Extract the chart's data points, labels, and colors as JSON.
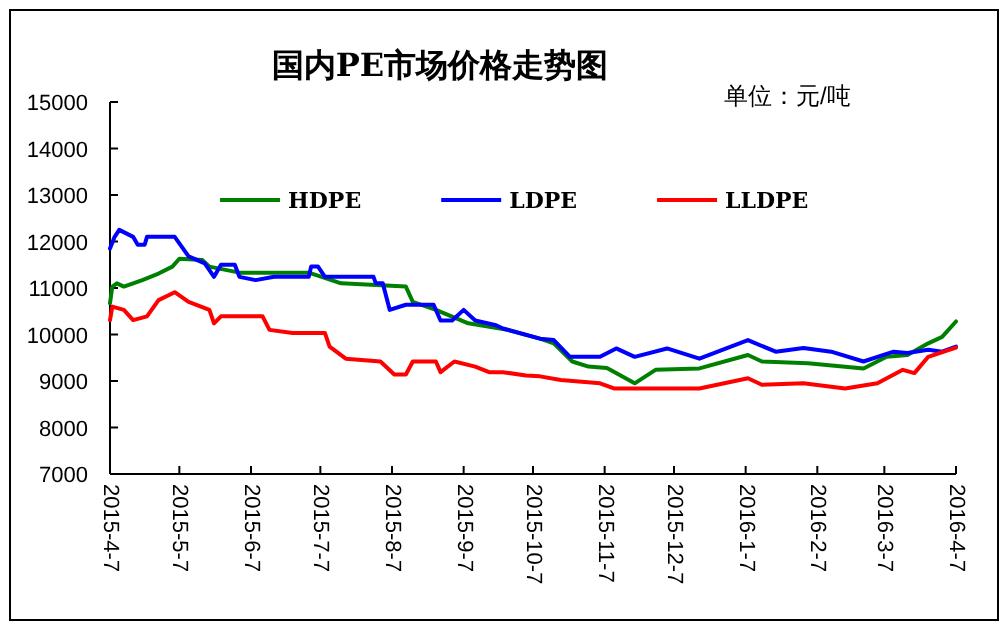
{
  "chart_data": {
    "type": "line",
    "title": "国内PE市场价格走势图",
    "annotations": [
      "单位：元/吨"
    ],
    "ylim": [
      7000,
      15000
    ],
    "yticks": [
      7000,
      8000,
      9000,
      10000,
      11000,
      12000,
      13000,
      14000,
      15000
    ],
    "xlim": [
      "2015-04-07",
      "2016-04-07"
    ],
    "xticks": [
      {
        "value": "2015-04-07",
        "label": "2015-4-7"
      },
      {
        "value": "2015-05-07",
        "label": "2015-5-7"
      },
      {
        "value": "2015-06-07",
        "label": "2015-6-7"
      },
      {
        "value": "2015-07-07",
        "label": "2015-7-7"
      },
      {
        "value": "2015-08-07",
        "label": "2015-8-7"
      },
      {
        "value": "2015-09-07",
        "label": "2015-9-7"
      },
      {
        "value": "2015-10-07",
        "label": "2015-10-7"
      },
      {
        "value": "2015-11-07",
        "label": "2015-11-7"
      },
      {
        "value": "2015-12-07",
        "label": "2015-12-7"
      },
      {
        "value": "2016-01-07",
        "label": "2016-1-7"
      },
      {
        "value": "2016-02-07",
        "label": "2016-2-7"
      },
      {
        "value": "2016-03-07",
        "label": "2016-3-7"
      },
      {
        "value": "2016-04-07",
        "label": "2016-4-7"
      }
    ],
    "legend": "top",
    "series": [
      {
        "name": "HDPE",
        "color": "#008000",
        "x": [
          "2015-04-07",
          "2015-04-08",
          "2015-04-10",
          "2015-04-13",
          "2015-04-21",
          "2015-04-28",
          "2015-05-04",
          "2015-05-07",
          "2015-05-17",
          "2015-05-20",
          "2015-06-02",
          "2015-07-02",
          "2015-07-16",
          "2015-08-13",
          "2015-08-16",
          "2015-08-26",
          "2015-09-09",
          "2015-09-26",
          "2015-10-10",
          "2015-10-16",
          "2015-10-24",
          "2015-10-31",
          "2015-11-08",
          "2015-11-20",
          "2015-11-29",
          "2015-12-18",
          "2016-01-08",
          "2016-01-14",
          "2016-02-03",
          "2016-02-27",
          "2016-03-08",
          "2016-03-17",
          "2016-03-26",
          "2016-04-01",
          "2016-04-07"
        ],
        "values": [
          10670,
          11030,
          11100,
          11030,
          11170,
          11310,
          11460,
          11630,
          11600,
          11460,
          11330,
          11330,
          11100,
          11030,
          10700,
          10530,
          10240,
          10100,
          9910,
          9810,
          9420,
          9310,
          9280,
          8950,
          9240,
          9270,
          9560,
          9420,
          9380,
          9270,
          9520,
          9560,
          9810,
          9950,
          10280
        ]
      },
      {
        "name": "LDPE",
        "color": "#0000ff",
        "x": [
          "2015-04-07",
          "2015-04-09",
          "2015-04-11",
          "2015-04-17",
          "2015-04-19",
          "2015-04-22",
          "2015-04-23",
          "2015-05-05",
          "2015-05-11",
          "2015-05-18",
          "2015-05-22",
          "2015-05-25",
          "2015-05-31",
          "2015-06-02",
          "2015-06-09",
          "2015-06-17",
          "2015-07-02",
          "2015-07-03",
          "2015-07-06",
          "2015-07-09",
          "2015-07-30",
          "2015-07-31",
          "2015-08-03",
          "2015-08-06",
          "2015-08-13",
          "2015-08-25",
          "2015-08-28",
          "2015-09-02",
          "2015-09-07",
          "2015-09-12",
          "2015-09-21",
          "2015-09-24",
          "2015-10-10",
          "2015-10-16",
          "2015-10-23",
          "2015-11-05",
          "2015-11-12",
          "2015-11-20",
          "2015-12-04",
          "2015-12-18",
          "2016-01-08",
          "2016-01-20",
          "2016-02-01",
          "2016-02-13",
          "2016-02-27",
          "2016-03-11",
          "2016-03-17",
          "2016-03-26",
          "2016-04-01",
          "2016-04-07"
        ],
        "values": [
          11850,
          12100,
          12250,
          12100,
          11930,
          11930,
          12100,
          12100,
          11680,
          11530,
          11240,
          11500,
          11500,
          11240,
          11170,
          11240,
          11240,
          11460,
          11460,
          11240,
          11240,
          11100,
          11100,
          10530,
          10640,
          10640,
          10300,
          10300,
          10530,
          10300,
          10200,
          10130,
          9910,
          9880,
          9520,
          9520,
          9700,
          9520,
          9700,
          9480,
          9880,
          9630,
          9710,
          9630,
          9420,
          9630,
          9600,
          9670,
          9630,
          9740
        ]
      },
      {
        "name": "LLDPE",
        "color": "#ff0000",
        "x": [
          "2015-04-07",
          "2015-04-08",
          "2015-04-13",
          "2015-04-17",
          "2015-04-23",
          "2015-04-28",
          "2015-05-05",
          "2015-05-11",
          "2015-05-20",
          "2015-05-22",
          "2015-05-25",
          "2015-06-12",
          "2015-06-15",
          "2015-06-25",
          "2015-07-09",
          "2015-07-11",
          "2015-07-18",
          "2015-08-02",
          "2015-08-08",
          "2015-08-13",
          "2015-08-16",
          "2015-08-26",
          "2015-08-28",
          "2015-09-03",
          "2015-09-12",
          "2015-09-18",
          "2015-09-24",
          "2015-10-04",
          "2015-10-10",
          "2015-10-19",
          "2015-11-05",
          "2015-11-11",
          "2015-12-18",
          "2016-01-08",
          "2016-01-14",
          "2016-02-01",
          "2016-02-19",
          "2016-03-04",
          "2016-03-15",
          "2016-03-20",
          "2016-03-26",
          "2016-04-06",
          "2016-04-07"
        ],
        "values": [
          10310,
          10600,
          10530,
          10310,
          10390,
          10740,
          10910,
          10700,
          10530,
          10240,
          10390,
          10390,
          10100,
          10030,
          10030,
          9740,
          9480,
          9420,
          9140,
          9140,
          9420,
          9420,
          9190,
          9420,
          9310,
          9190,
          9190,
          9120,
          9100,
          9020,
          8950,
          8840,
          8840,
          9060,
          8920,
          8950,
          8840,
          8950,
          9240,
          9170,
          9520,
          9700,
          9720
        ]
      }
    ]
  }
}
